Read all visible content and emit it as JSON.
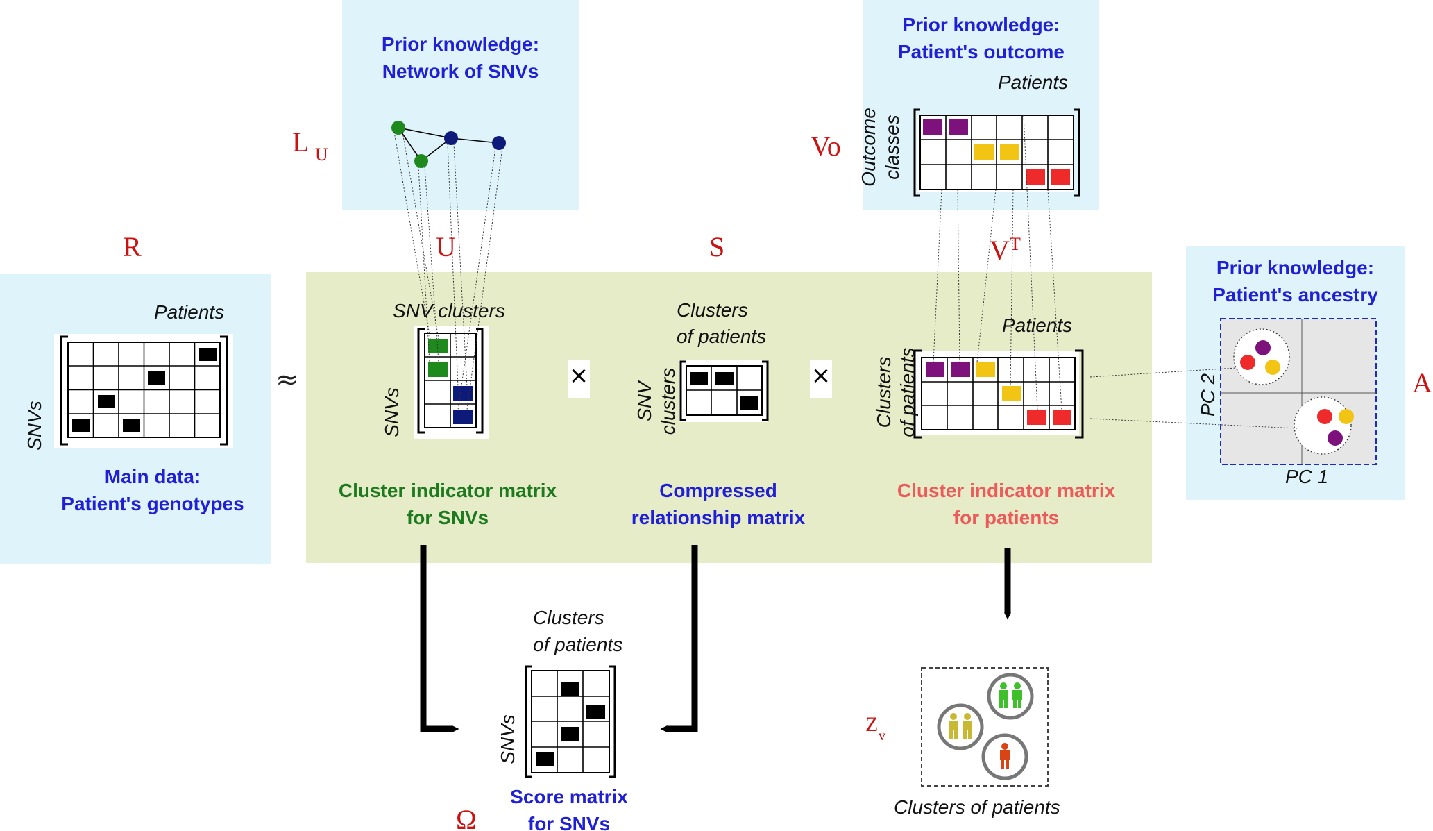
{
  "panels": {
    "network_prior": {
      "title": "Prior knowledge:\nNetwork of SNVs"
    },
    "outcome_prior": {
      "title": "Prior knowledge:\nPatient's outcome",
      "col_label": "Patients",
      "row_label": "Outcome\nclasses"
    },
    "ancestry_prior": {
      "title": "Prior knowledge:\nPatient's ancestry",
      "x_label": "PC 1",
      "y_label": "PC 2"
    },
    "main_data": {
      "title": "Main data:\nPatient's genotypes",
      "col_label": "Patients",
      "row_label": "SNVs"
    }
  },
  "symbols": {
    "R": "R",
    "U": "U",
    "S": "S",
    "V": "V",
    "V_sup": "T",
    "L": "L",
    "L_sub": "U",
    "Vo": "Vo",
    "A": "A",
    "Omega": "Ω",
    "Z": "Z",
    "Z_sub": "v"
  },
  "operators": {
    "approx": "≈",
    "times1": "×",
    "times2": "×"
  },
  "matrices": {
    "U": {
      "col_label": "SNV clusters",
      "row_label": "SNVs",
      "caption": "Cluster indicator matrix\nfor SNVs"
    },
    "S": {
      "col_label": "Clusters\nof patients",
      "row_label": "SNV\nclusters",
      "caption": "Compressed\nrelationship matrix"
    },
    "V": {
      "col_label": "Patients",
      "row_label": "Clusters\nof patients",
      "caption": "Cluster indicator matrix\nfor patients"
    },
    "Omega": {
      "col_label": "Clusters\nof patients",
      "row_label": "SNVs",
      "caption": "Score matrix\nfor SNVs"
    },
    "Z": {
      "caption": "Clusters of patients"
    }
  },
  "colors": {
    "blue_panel": "#dff3fb",
    "green_panel": "#e6ebc8",
    "title_blue": "#1f1fd6",
    "title_green": "#1e7a1e",
    "title_salmon": "#ec5a5a",
    "symbol_red": "#cc1111",
    "purple": "#7d127d",
    "yellow": "#f2c414",
    "red": "#ef2a2a",
    "node_green": "#1e8a1e",
    "node_navy": "#0d1a7a"
  }
}
